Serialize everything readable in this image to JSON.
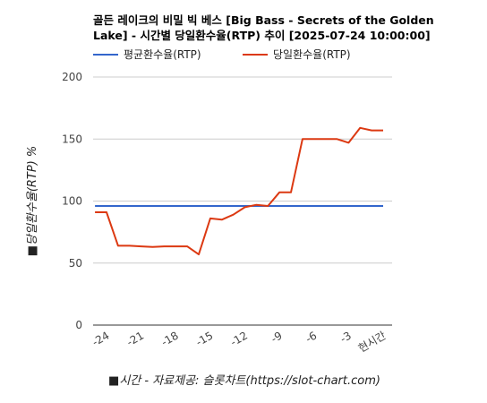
{
  "title_line1": "골든 레이크의 비밀 빅 베스 [Big Bass - Secrets of the Golden",
  "title_line2": "Lake] - 시간별 당일환수율(RTP) 추이 [2025-07-24 10:00:00]",
  "chart_data": {
    "type": "line",
    "title": "골든 레이크의 비밀 빅 베스 [Big Bass - Secrets of the Golden Lake] - 시간별 당일환수율(RTP) 추이 [2025-07-24 10:00:00]",
    "xlabel": "■시간 - 자료제공: 슬롯차트(https://slot-chart.com)",
    "ylabel": "■당일환수율(RTP) %",
    "ylim": [
      0,
      200
    ],
    "yticks": [
      "0",
      "50",
      "100",
      "150",
      "200"
    ],
    "xlim": [
      -24,
      0
    ],
    "xticks": [
      {
        "value": -24,
        "label": "-24"
      },
      {
        "value": -21,
        "label": "-21"
      },
      {
        "value": -18,
        "label": "-18"
      },
      {
        "value": -15,
        "label": "-15"
      },
      {
        "value": -12,
        "label": "-12"
      },
      {
        "value": -9,
        "label": "-9"
      },
      {
        "value": -6,
        "label": "-6"
      },
      {
        "value": -3,
        "label": "-3"
      },
      {
        "value": 0,
        "label": "현시간"
      }
    ],
    "grid": true,
    "legend_position": "top",
    "series": [
      {
        "name": "평균환수율(RTP)",
        "color": "#3366cc",
        "x": [
          -25,
          0
        ],
        "values": [
          96,
          96
        ]
      },
      {
        "name": "당일환수율(RTP)",
        "color": "#dc3912",
        "x": [
          -25,
          -24,
          -23,
          -22,
          -21,
          -20,
          -19,
          -18,
          -17,
          -16,
          -15,
          -14,
          -13,
          -12,
          -11,
          -10,
          -9,
          -8,
          -7,
          -6,
          -5,
          -4,
          -3,
          -2,
          -1,
          0
        ],
        "values": [
          91,
          91,
          64,
          64,
          63.5,
          63,
          63.5,
          63.5,
          63.5,
          57,
          86,
          85,
          89,
          95,
          97,
          96,
          107,
          107,
          150,
          150,
          150,
          150,
          147,
          159,
          157,
          157
        ]
      }
    ]
  }
}
